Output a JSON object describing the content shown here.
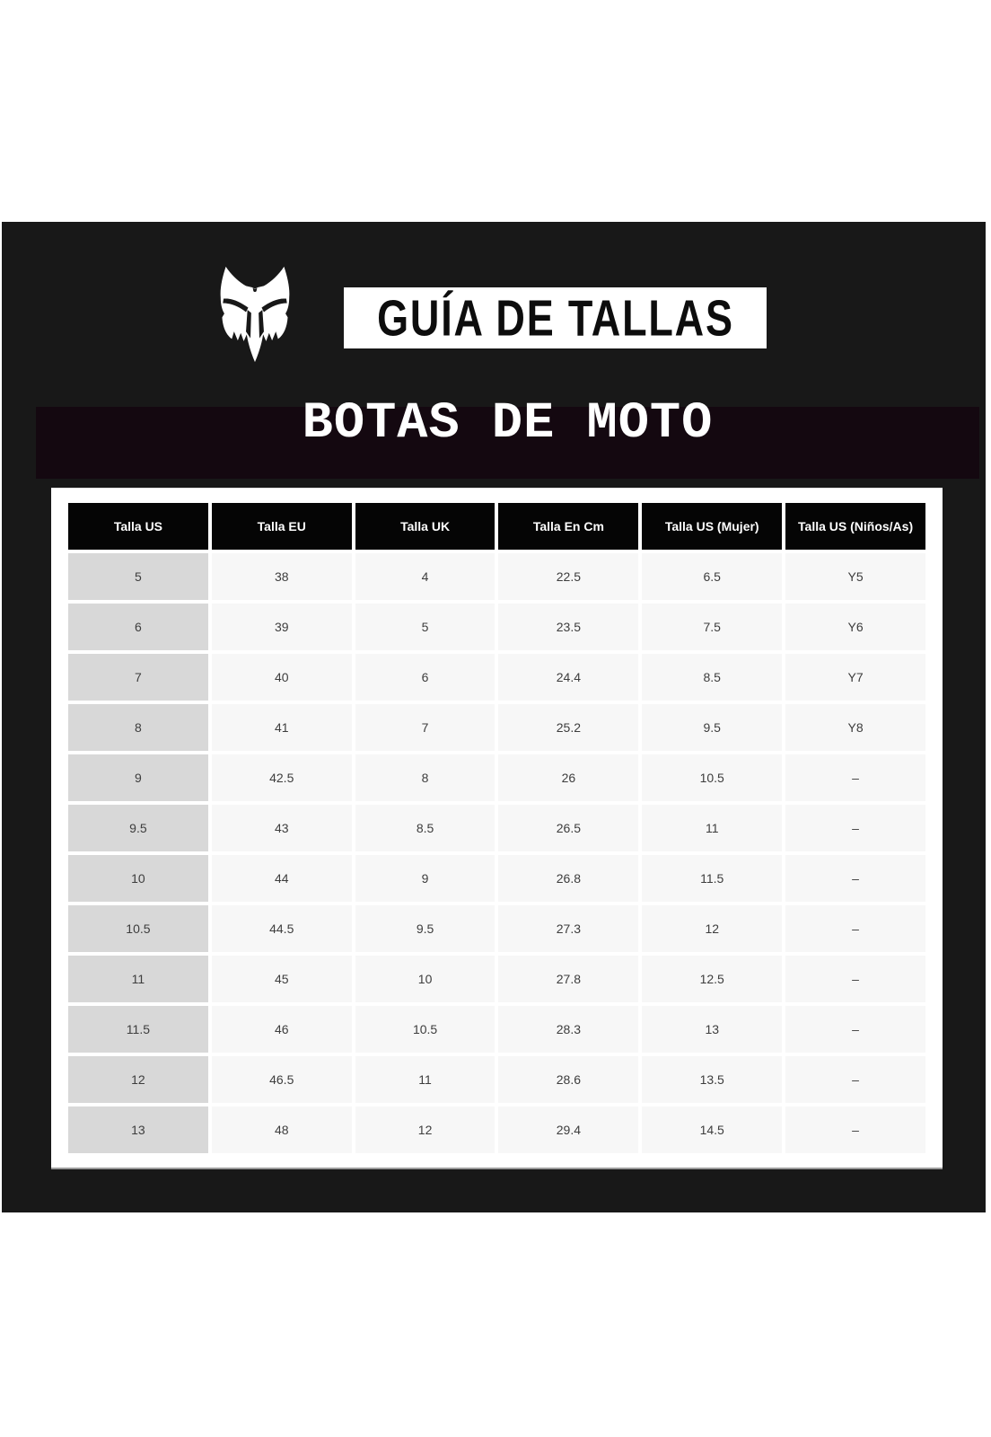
{
  "header": {
    "logo": "fox-racing-head",
    "title": "GUÍA DE TALLAS",
    "subtitle": "BOTAS DE MOTO"
  },
  "table": {
    "columns": [
      "Talla US",
      "Talla EU",
      "Talla UK",
      "Talla En Cm",
      "Talla US (Mujer)",
      "Talla US (Niños/As)"
    ],
    "rows": [
      [
        "5",
        "38",
        "4",
        "22.5",
        "6.5",
        "Y5"
      ],
      [
        "6",
        "39",
        "5",
        "23.5",
        "7.5",
        "Y6"
      ],
      [
        "7",
        "40",
        "6",
        "24.4",
        "8.5",
        "Y7"
      ],
      [
        "8",
        "41",
        "7",
        "25.2",
        "9.5",
        "Y8"
      ],
      [
        "9",
        "42.5",
        "8",
        "26",
        "10.5",
        "–"
      ],
      [
        "9.5",
        "43",
        "8.5",
        "26.5",
        "11",
        "–"
      ],
      [
        "10",
        "44",
        "9",
        "26.8",
        "11.5",
        "–"
      ],
      [
        "10.5",
        "44.5",
        "9.5",
        "27.3",
        "12",
        "–"
      ],
      [
        "11",
        "45",
        "10",
        "27.8",
        "12.5",
        "–"
      ],
      [
        "11.5",
        "46",
        "10.5",
        "28.3",
        "13",
        "–"
      ],
      [
        "12",
        "46.5",
        "11",
        "28.6",
        "13.5",
        "–"
      ],
      [
        "13",
        "48",
        "12",
        "29.4",
        "14.5",
        "–"
      ]
    ]
  },
  "colors": {
    "panel_bg": "#181818",
    "subtitle_band_bg": "#140810",
    "header_cell_bg": "#050505",
    "first_column_bg": "#d8d8d8",
    "cell_bg": "#f7f7f7",
    "title_box_bg": "#ffffff"
  }
}
